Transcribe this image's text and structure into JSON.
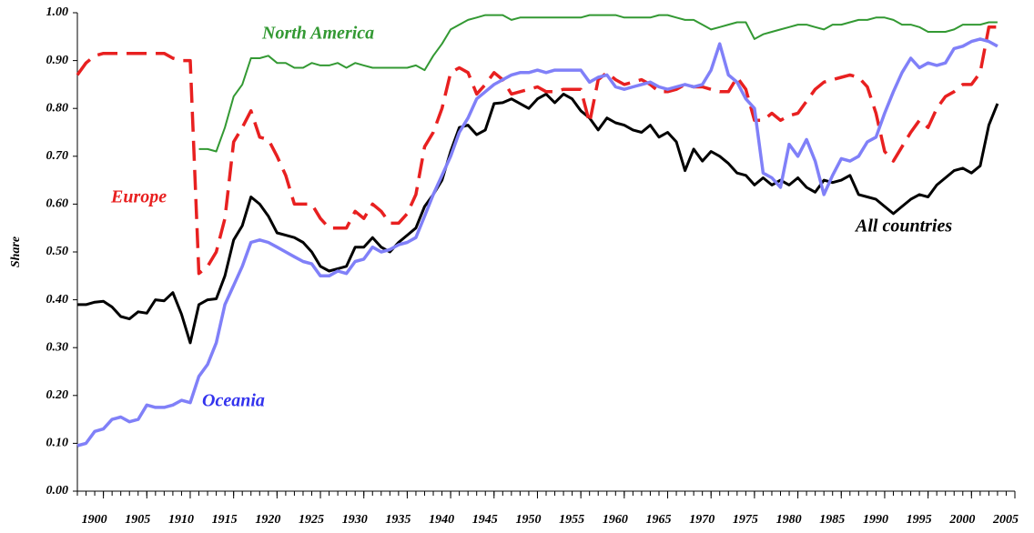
{
  "chart_data": {
    "type": "line",
    "y_label": "Share",
    "x": [
      1897,
      1898,
      1899,
      1900,
      1901,
      1902,
      1903,
      1904,
      1905,
      1906,
      1907,
      1908,
      1909,
      1910,
      1911,
      1912,
      1913,
      1914,
      1915,
      1916,
      1917,
      1918,
      1919,
      1920,
      1921,
      1922,
      1923,
      1924,
      1925,
      1926,
      1927,
      1928,
      1929,
      1930,
      1931,
      1932,
      1933,
      1934,
      1935,
      1936,
      1937,
      1938,
      1939,
      1940,
      1941,
      1942,
      1943,
      1944,
      1945,
      1946,
      1947,
      1948,
      1949,
      1950,
      1951,
      1952,
      1953,
      1954,
      1955,
      1956,
      1957,
      1958,
      1959,
      1960,
      1961,
      1962,
      1963,
      1964,
      1965,
      1966,
      1967,
      1968,
      1969,
      1970,
      1971,
      1972,
      1973,
      1974,
      1975,
      1976,
      1977,
      1978,
      1979,
      1980,
      1981,
      1982,
      1983,
      1984,
      1985,
      1986,
      1987,
      1988,
      1989,
      1990,
      1991,
      1992,
      1993,
      1994,
      1995,
      1996,
      1997,
      1998,
      1999,
      2000,
      2001,
      2002,
      2003
    ],
    "series": [
      {
        "name": "All countries",
        "color": "#000000",
        "dash": false,
        "width": 3,
        "values": [
          0.39,
          0.39,
          0.395,
          0.397,
          0.385,
          0.365,
          0.36,
          0.375,
          0.372,
          0.4,
          0.398,
          0.415,
          0.37,
          0.31,
          0.39,
          0.4,
          0.402,
          0.45,
          0.525,
          0.555,
          0.615,
          0.6,
          0.575,
          0.54,
          0.535,
          0.53,
          0.52,
          0.5,
          0.47,
          0.46,
          0.465,
          0.47,
          0.51,
          0.51,
          0.53,
          0.51,
          0.5,
          0.52,
          0.535,
          0.55,
          0.595,
          0.62,
          0.65,
          0.71,
          0.76,
          0.765,
          0.745,
          0.755,
          0.81,
          0.812,
          0.82,
          0.81,
          0.8,
          0.82,
          0.83,
          0.812,
          0.83,
          0.82,
          0.795,
          0.78,
          0.755,
          0.78,
          0.77,
          0.765,
          0.755,
          0.75,
          0.765,
          0.74,
          0.75,
          0.73,
          0.67,
          0.715,
          0.69,
          0.71,
          0.7,
          0.685,
          0.665,
          0.66,
          0.64,
          0.655,
          0.64,
          0.65,
          0.64,
          0.655,
          0.635,
          0.625,
          0.65,
          0.645,
          0.65,
          0.66,
          0.62,
          0.615,
          0.61,
          0.595,
          0.58,
          0.595,
          0.61,
          0.62,
          0.615,
          0.64,
          0.655,
          0.67,
          0.675,
          0.665,
          0.68,
          0.765,
          0.81
        ]
      },
      {
        "name": "Europe",
        "color": "#e82020",
        "dash": true,
        "width": 3.5,
        "values": [
          0.87,
          0.895,
          0.91,
          0.915,
          0.915,
          0.915,
          0.915,
          0.915,
          0.915,
          0.915,
          0.915,
          0.905,
          0.9,
          0.9,
          0.455,
          0.47,
          0.5,
          0.57,
          0.73,
          0.76,
          0.795,
          0.74,
          0.735,
          0.7,
          0.66,
          0.6,
          0.6,
          0.6,
          0.57,
          0.55,
          0.55,
          0.55,
          0.585,
          0.57,
          0.6,
          0.585,
          0.56,
          0.56,
          0.58,
          0.62,
          0.72,
          0.75,
          0.8,
          0.875,
          0.885,
          0.875,
          0.83,
          0.85,
          0.875,
          0.86,
          0.83,
          0.835,
          0.84,
          0.845,
          0.835,
          0.835,
          0.84,
          0.84,
          0.84,
          0.77,
          0.86,
          0.875,
          0.86,
          0.85,
          0.855,
          0.86,
          0.85,
          0.835,
          0.835,
          0.84,
          0.85,
          0.845,
          0.845,
          0.84,
          0.835,
          0.835,
          0.865,
          0.84,
          0.775,
          0.775,
          0.79,
          0.775,
          0.785,
          0.79,
          0.815,
          0.84,
          0.855,
          0.86,
          0.865,
          0.87,
          0.865,
          0.845,
          0.79,
          0.71,
          0.69,
          0.72,
          0.75,
          0.775,
          0.76,
          0.8,
          0.825,
          0.835,
          0.85,
          0.85,
          0.875,
          0.97,
          0.97
        ]
      },
      {
        "name": "Oceania",
        "color": "#8080f8",
        "dash": false,
        "width": 3.5,
        "values": [
          0.095,
          0.1,
          0.125,
          0.13,
          0.15,
          0.155,
          0.145,
          0.15,
          0.18,
          0.175,
          0.175,
          0.18,
          0.19,
          0.185,
          0.24,
          0.265,
          0.31,
          0.39,
          0.43,
          0.47,
          0.52,
          0.525,
          0.52,
          0.51,
          0.5,
          0.49,
          0.48,
          0.475,
          0.45,
          0.45,
          0.46,
          0.455,
          0.48,
          0.485,
          0.51,
          0.5,
          0.505,
          0.515,
          0.52,
          0.53,
          0.575,
          0.62,
          0.66,
          0.7,
          0.75,
          0.78,
          0.82,
          0.835,
          0.85,
          0.86,
          0.87,
          0.875,
          0.875,
          0.88,
          0.875,
          0.88,
          0.88,
          0.88,
          0.88,
          0.855,
          0.865,
          0.87,
          0.845,
          0.84,
          0.845,
          0.85,
          0.855,
          0.845,
          0.84,
          0.845,
          0.85,
          0.845,
          0.85,
          0.88,
          0.935,
          0.87,
          0.855,
          0.82,
          0.8,
          0.665,
          0.655,
          0.635,
          0.725,
          0.7,
          0.735,
          0.69,
          0.62,
          0.66,
          0.695,
          0.69,
          0.7,
          0.73,
          0.74,
          0.79,
          0.835,
          0.875,
          0.905,
          0.885,
          0.895,
          0.89,
          0.895,
          0.925,
          0.93,
          0.94,
          0.945,
          0.94,
          0.93
        ]
      },
      {
        "name": "North America",
        "color": "#339933",
        "dash": false,
        "width": 2,
        "values": [
          null,
          null,
          null,
          null,
          null,
          null,
          null,
          null,
          null,
          null,
          null,
          null,
          null,
          null,
          0.715,
          0.715,
          0.71,
          0.76,
          0.825,
          0.85,
          0.905,
          0.905,
          0.91,
          0.895,
          0.895,
          0.885,
          0.885,
          0.895,
          0.89,
          0.89,
          0.895,
          0.885,
          0.895,
          0.89,
          0.885,
          0.885,
          0.885,
          0.885,
          0.885,
          0.89,
          0.88,
          0.91,
          0.935,
          0.965,
          0.975,
          0.985,
          0.99,
          0.995,
          0.995,
          0.995,
          0.985,
          0.99,
          0.99,
          0.99,
          0.99,
          0.99,
          0.99,
          0.99,
          0.99,
          0.995,
          0.995,
          0.995,
          0.995,
          0.99,
          0.99,
          0.99,
          0.99,
          0.995,
          0.995,
          0.99,
          0.985,
          0.985,
          0.975,
          0.965,
          0.97,
          0.975,
          0.98,
          0.98,
          0.945,
          0.955,
          0.96,
          0.965,
          0.97,
          0.975,
          0.975,
          0.97,
          0.965,
          0.975,
          0.975,
          0.98,
          0.985,
          0.985,
          0.99,
          0.99,
          0.985,
          0.975,
          0.975,
          0.97,
          0.96,
          0.96,
          0.96,
          0.965,
          0.975,
          0.975,
          0.975,
          0.98,
          0.98
        ]
      }
    ],
    "xlim": [
      1897,
      2005
    ],
    "xticks": [
      1900,
      1905,
      1910,
      1915,
      1920,
      1925,
      1930,
      1935,
      1940,
      1945,
      1950,
      1955,
      1960,
      1965,
      1970,
      1975,
      1980,
      1985,
      1990,
      1995,
      2000,
      2005
    ],
    "ylim": [
      0,
      1
    ],
    "yticks": [
      {
        "value": 0,
        "label": "0.00"
      },
      {
        "value": 0.1,
        "label": "0.10"
      },
      {
        "value": 0.2,
        "label": "0.20"
      },
      {
        "value": 0.3,
        "label": "0.30"
      },
      {
        "value": 0.4,
        "label": "0.40"
      },
      {
        "value": 0.5,
        "label": "0.50"
      },
      {
        "value": 0.6,
        "label": "0.60"
      },
      {
        "value": 0.7,
        "label": "0.70"
      },
      {
        "value": 0.8,
        "label": "0.80"
      },
      {
        "value": 0.9,
        "label": "0.90"
      },
      {
        "value": 1,
        "label": "1.00"
      }
    ],
    "grid": false
  }
}
